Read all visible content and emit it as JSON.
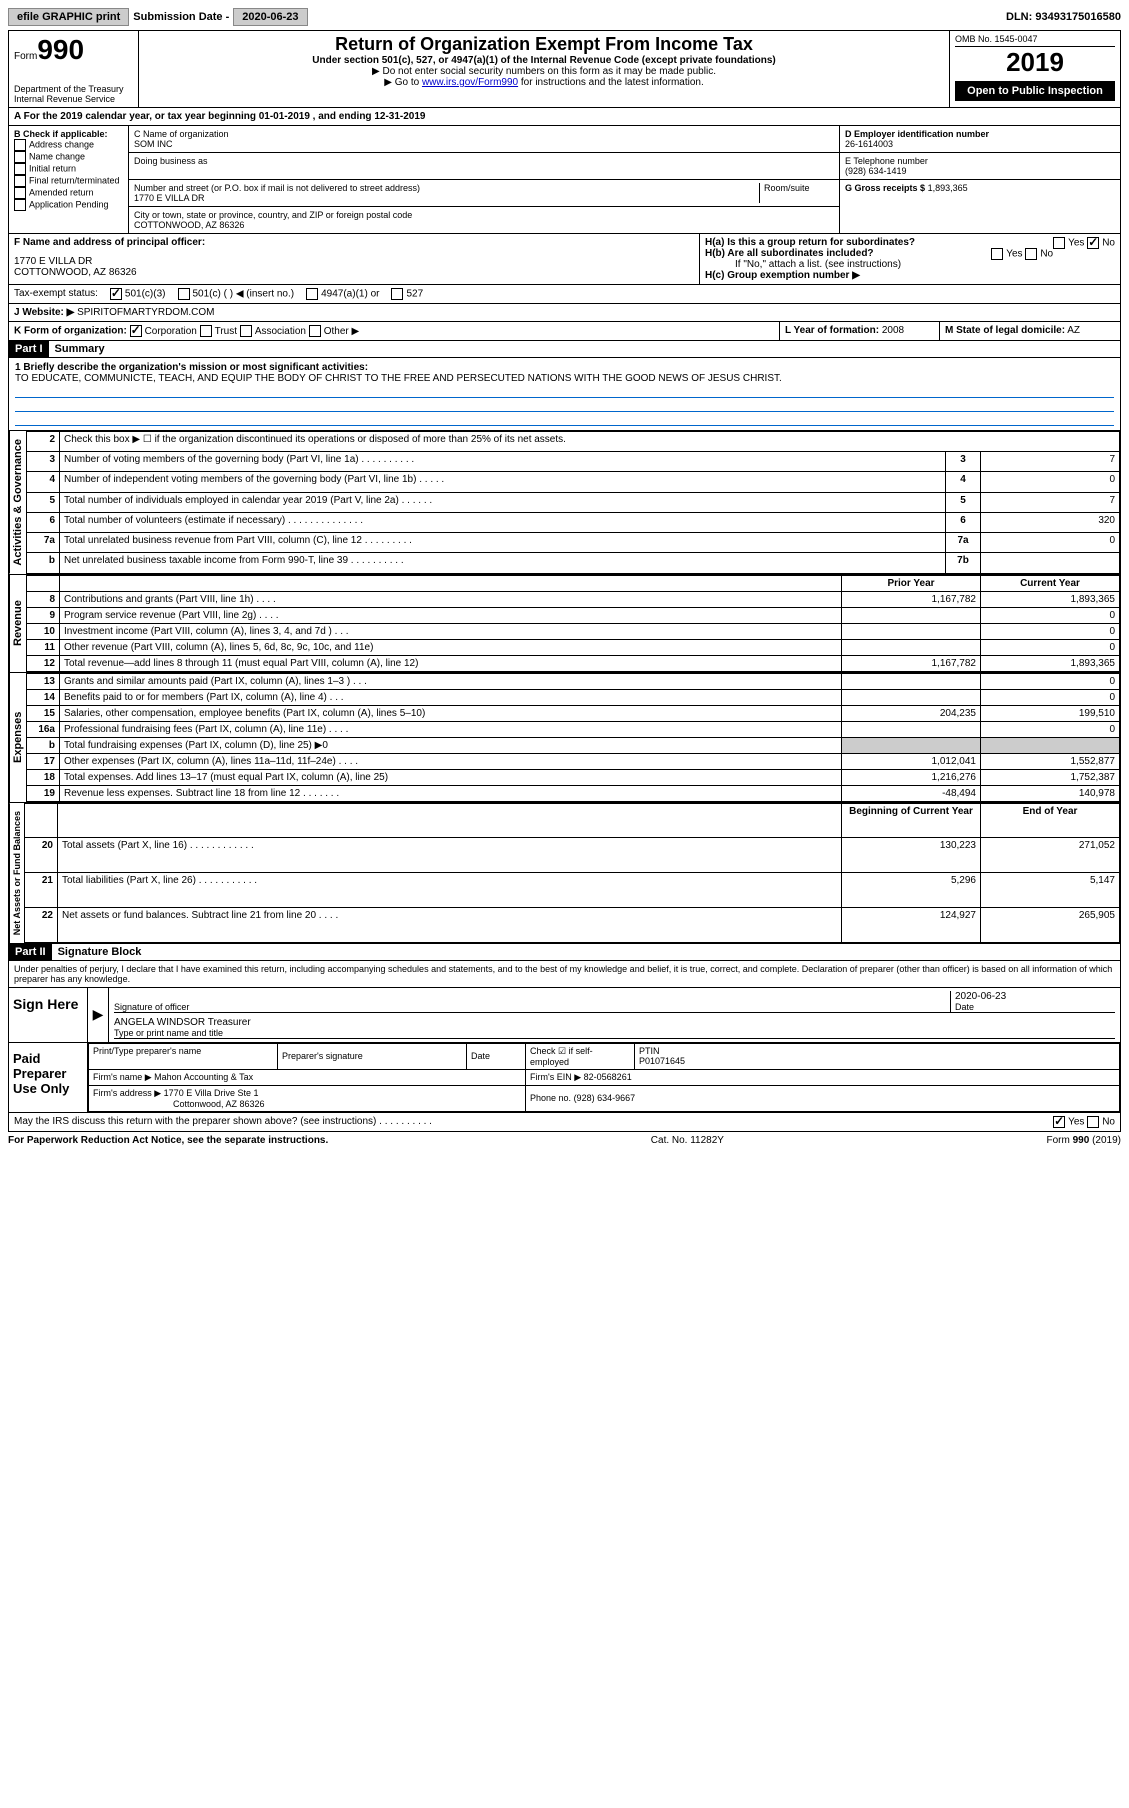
{
  "topbar": {
    "efile": "efile GRAPHIC print",
    "submission_label": "Submission Date -",
    "submission_date": "2020-06-23",
    "dln_label": "DLN:",
    "dln": "93493175016580"
  },
  "header": {
    "form_label": "Form",
    "form_no": "990",
    "dept": "Department of the Treasury",
    "irs": "Internal Revenue Service",
    "title": "Return of Organization Exempt From Income Tax",
    "sub1": "Under section 501(c), 527, or 4947(a)(1) of the Internal Revenue Code (except private foundations)",
    "sub2": "▶ Do not enter social security numbers on this form as it may be made public.",
    "sub3_prefix": "▶ Go to ",
    "sub3_link": "www.irs.gov/Form990",
    "sub3_suffix": " for instructions and the latest information.",
    "omb": "OMB No. 1545-0047",
    "year": "2019",
    "inspection": "Open to Public Inspection"
  },
  "section_a": {
    "text": "A For the 2019 calendar year, or tax year beginning 01-01-2019    , and ending 12-31-2019"
  },
  "section_b": {
    "header": "B Check if applicable:",
    "items": [
      "Address change",
      "Name change",
      "Initial return",
      "Final return/terminated",
      "Amended return",
      "Application Pending"
    ]
  },
  "section_c": {
    "name_label": "C Name of organization",
    "name": "SOM INC",
    "dba_label": "Doing business as",
    "addr_label": "Number and street (or P.O. box if mail is not delivered to street address)",
    "room_label": "Room/suite",
    "addr": "1770 E VILLA DR",
    "city_label": "City or town, state or province, country, and ZIP or foreign postal code",
    "city": "COTTONWOOD, AZ  86326"
  },
  "section_d": {
    "label": "D Employer identification number",
    "value": "26-1614003"
  },
  "section_e": {
    "label": "E Telephone number",
    "value": "(928) 634-1419"
  },
  "section_g": {
    "label": "G Gross receipts $",
    "value": "1,893,365"
  },
  "section_f": {
    "label": "F  Name and address of principal officer:",
    "addr1": "1770 E VILLA DR",
    "addr2": "COTTONWOOD, AZ  86326"
  },
  "section_h": {
    "a_label": "H(a)  Is this a group return for subordinates?",
    "b_label": "H(b)  Are all subordinates included?",
    "note": "If \"No,\" attach a list. (see instructions)",
    "c_label": "H(c)  Group exemption number ▶"
  },
  "tax_status": {
    "label": "Tax-exempt status:",
    "opt1": "501(c)(3)",
    "opt2": "501(c) (   ) ◀ (insert no.)",
    "opt3": "4947(a)(1) or",
    "opt4": "527"
  },
  "section_j": {
    "label": "J    Website: ▶",
    "value": "SPIRITOFMARTYRDOM.COM"
  },
  "section_k": {
    "label": "K Form of organization:",
    "opts": [
      "Corporation",
      "Trust",
      "Association",
      "Other ▶"
    ]
  },
  "section_l": {
    "label": "L Year of formation:",
    "value": "2008"
  },
  "section_m": {
    "label": "M State of legal domicile:",
    "value": "AZ"
  },
  "part1": {
    "header": "Part I",
    "title": "Summary",
    "line1_label": "1   Briefly describe the organization's mission or most significant activities:",
    "mission": "TO EDUCATE, COMMUNICTE, TEACH, AND EQUIP THE BODY OF CHRIST TO THE FREE AND PERSECUTED NATIONS WITH THE GOOD NEWS OF JESUS CHRIST."
  },
  "governance_label": "Activities & Governance",
  "revenue_label": "Revenue",
  "expenses_label": "Expenses",
  "netassets_label": "Net Assets or Fund Balances",
  "governance_rows": [
    {
      "num": "2",
      "text": "Check this box ▶ ☐  if the organization discontinued its operations or disposed of more than 25% of its net assets.",
      "box": "",
      "val": ""
    },
    {
      "num": "3",
      "text": "Number of voting members of the governing body (Part VI, line 1a)   .   .   .   .   .   .   .   .   .   .",
      "box": "3",
      "val": "7"
    },
    {
      "num": "4",
      "text": "Number of independent voting members of the governing body (Part VI, line 1b)   .   .   .   .   .",
      "box": "4",
      "val": "0"
    },
    {
      "num": "5",
      "text": "Total number of individuals employed in calendar year 2019 (Part V, line 2a)   .   .   .   .   .   .",
      "box": "5",
      "val": "7"
    },
    {
      "num": "6",
      "text": "Total number of volunteers (estimate if necessary)   .   .   .   .   .   .   .   .   .   .   .   .   .   .",
      "box": "6",
      "val": "320"
    },
    {
      "num": "7a",
      "text": "Total unrelated business revenue from Part VIII, column (C), line 12   .   .   .   .   .   .   .   .   .",
      "box": "7a",
      "val": "0"
    },
    {
      "num": "b",
      "text": "Net unrelated business taxable income from Form 990-T, line 39   .   .   .   .   .   .   .   .   .   .",
      "box": "7b",
      "val": ""
    }
  ],
  "year_cols": {
    "prior": "Prior Year",
    "current": "Current Year"
  },
  "revenue_rows": [
    {
      "num": "8",
      "text": "Contributions and grants (Part VIII, line 1h)   .   .   .   .",
      "prior": "1,167,782",
      "current": "1,893,365"
    },
    {
      "num": "9",
      "text": "Program service revenue (Part VIII, line 2g)   .   .   .   .",
      "prior": "",
      "current": "0"
    },
    {
      "num": "10",
      "text": "Investment income (Part VIII, column (A), lines 3, 4, and 7d )   .   .   .",
      "prior": "",
      "current": "0"
    },
    {
      "num": "11",
      "text": "Other revenue (Part VIII, column (A), lines 5, 6d, 8c, 9c, 10c, and 11e)",
      "prior": "",
      "current": "0"
    },
    {
      "num": "12",
      "text": "Total revenue—add lines 8 through 11 (must equal Part VIII, column (A), line 12)",
      "prior": "1,167,782",
      "current": "1,893,365"
    }
  ],
  "expense_rows": [
    {
      "num": "13",
      "text": "Grants and similar amounts paid (Part IX, column (A), lines 1–3 )   .   .   .",
      "prior": "",
      "current": "0"
    },
    {
      "num": "14",
      "text": "Benefits paid to or for members (Part IX, column (A), line 4)   .   .   .",
      "prior": "",
      "current": "0"
    },
    {
      "num": "15",
      "text": "Salaries, other compensation, employee benefits (Part IX, column (A), lines 5–10)",
      "prior": "204,235",
      "current": "199,510"
    },
    {
      "num": "16a",
      "text": "Professional fundraising fees (Part IX, column (A), line 11e)   .   .   .   .",
      "prior": "",
      "current": "0"
    },
    {
      "num": "b",
      "text": "Total fundraising expenses (Part IX, column (D), line 25) ▶0",
      "prior": "shaded",
      "current": "shaded"
    },
    {
      "num": "17",
      "text": "Other expenses (Part IX, column (A), lines 11a–11d, 11f–24e)   .   .   .   .",
      "prior": "1,012,041",
      "current": "1,552,877"
    },
    {
      "num": "18",
      "text": "Total expenses. Add lines 13–17 (must equal Part IX, column (A), line 25)",
      "prior": "1,216,276",
      "current": "1,752,387"
    },
    {
      "num": "19",
      "text": "Revenue less expenses. Subtract line 18 from line 12   .   .   .   .   .   .   .",
      "prior": "-48,494",
      "current": "140,978"
    }
  ],
  "netassets_cols": {
    "begin": "Beginning of Current Year",
    "end": "End of Year"
  },
  "netassets_rows": [
    {
      "num": "20",
      "text": "Total assets (Part X, line 16)   .   .   .   .   .   .   .   .   .   .   .   .",
      "begin": "130,223",
      "end": "271,052"
    },
    {
      "num": "21",
      "text": "Total liabilities (Part X, line 26)   .   .   .   .   .   .   .   .   .   .   .",
      "begin": "5,296",
      "end": "5,147"
    },
    {
      "num": "22",
      "text": "Net assets or fund balances. Subtract line 21 from line 20   .   .   .   .",
      "begin": "124,927",
      "end": "265,905"
    }
  ],
  "part2": {
    "header": "Part II",
    "title": "Signature Block",
    "perjury": "Under penalties of perjury, I declare that I have examined this return, including accompanying schedules and statements, and to the best of my knowledge and belief, it is true, correct, and complete. Declaration of preparer (other than officer) is based on all information of which preparer has any knowledge."
  },
  "sign": {
    "here": "Sign Here",
    "sig_label": "Signature of officer",
    "date_label": "Date",
    "date": "2020-06-23",
    "name": "ANGELA WINDSOR Treasurer",
    "name_label": "Type or print name and title"
  },
  "preparer": {
    "label": "Paid Preparer Use Only",
    "name_label": "Print/Type preparer's name",
    "sig_label": "Preparer's signature",
    "date_label": "Date",
    "check_label": "Check ☑ if self-employed",
    "ptin_label": "PTIN",
    "ptin": "P01071645",
    "firm_label": "Firm's name    ▶",
    "firm": "Mahon Accounting & Tax",
    "ein_label": "Firm's EIN ▶",
    "ein": "82-0568261",
    "addr_label": "Firm's address ▶",
    "addr1": "1770 E Villa Drive Ste 1",
    "addr2": "Cottonwood, AZ  86326",
    "phone_label": "Phone no.",
    "phone": "(928) 634-9667"
  },
  "footer": {
    "discuss": "May the IRS discuss this return with the preparer shown above? (see instructions)   .   .   .   .   .   .   .   .   .   .",
    "yes": "Yes",
    "no": "No",
    "paperwork": "For Paperwork Reduction Act Notice, see the separate instructions.",
    "cat": "Cat. No. 11282Y",
    "form": "Form 990 (2019)"
  }
}
